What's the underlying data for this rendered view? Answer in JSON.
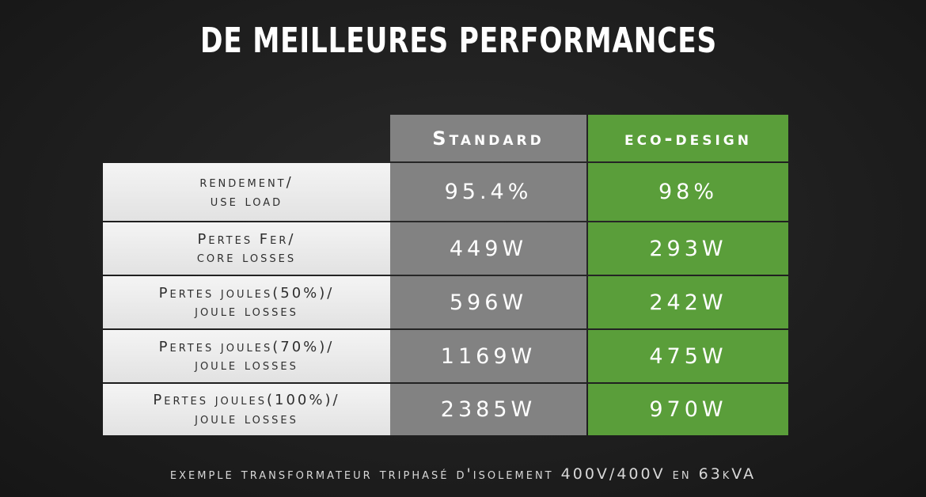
{
  "title": "DE MEILLEURES PERFORMANCES",
  "columns": {
    "standard": "Standard",
    "eco": "eco-design"
  },
  "rows": [
    {
      "label": "rendement/\nuse load",
      "standard": "95.4%",
      "eco": "98%"
    },
    {
      "label": "Pertes Fer/\ncore losses",
      "standard": "449W",
      "eco": "293W"
    },
    {
      "label": "Pertes joules(50%)/\njoule losses",
      "standard": "596W",
      "eco": "242W"
    },
    {
      "label": "Pertes joules(70%)/\njoule losses",
      "standard": "1169W",
      "eco": "475W"
    },
    {
      "label": "Pertes joules(100%)/\njoule losses",
      "standard": "2385W",
      "eco": "970W"
    }
  ],
  "footnote": "exemple transformateur triphasé d'isolement 400V/400V en 63kVA",
  "colors": {
    "background": "#1f1f1f",
    "standard_column": "#828282",
    "eco_column": "#5a9e3a",
    "label_column": "#eeeeee"
  }
}
